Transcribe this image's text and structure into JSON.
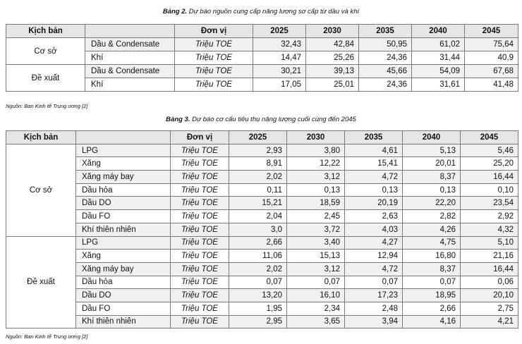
{
  "table2": {
    "caption_bold": "Bảng 2.",
    "caption_text": " Dự báo nguồn cung cấp năng lượng sơ cấp từ dầu và khí",
    "headers": [
      "Kịch bản",
      "",
      "Đơn vị",
      "2025",
      "2030",
      "2035",
      "2040",
      "2045"
    ],
    "groups": [
      {
        "scenario": "Cơ sở",
        "rows": [
          {
            "item": "Dầu & Condensate",
            "unit": "Triệu TOE",
            "values": [
              "32,43",
              "42,84",
              "50,95",
              "61,02",
              "75,64"
            ]
          },
          {
            "item": "Khí",
            "unit": "Triệu TOE",
            "values": [
              "14,47",
              "25,26",
              "24,36",
              "31,44",
              "40,9"
            ]
          }
        ]
      },
      {
        "scenario": "Đề xuất",
        "rows": [
          {
            "item": "Dầu & Condensate",
            "unit": "Triệu TOE",
            "values": [
              "30,21",
              "39,13",
              "45,66",
              "54,09",
              "67,68"
            ]
          },
          {
            "item": "Khí",
            "unit": "Triệu TOE",
            "values": [
              "17,05",
              "25,01",
              "24,36",
              "31,61",
              "41,48"
            ]
          }
        ]
      }
    ],
    "source": "Nguồn: Ban Kinh tế Trung ương [2]"
  },
  "table3": {
    "caption_bold": "Bảng 3.",
    "caption_text": " Dự báo cơ cấu tiêu thụ năng lượng cuối cùng đến 2045",
    "headers": [
      "Kịch bản",
      "",
      "Đơn vị",
      "2025",
      "2030",
      "2035",
      "2040",
      "2045"
    ],
    "groups": [
      {
        "scenario": "Cơ sở",
        "rows": [
          {
            "item": "LPG",
            "unit": "Triệu TOE",
            "values": [
              "2,93",
              "3,80",
              "4,61",
              "5,13",
              "5,46"
            ]
          },
          {
            "item": "Xăng",
            "unit": "Triệu TOE",
            "values": [
              "8,91",
              "12,22",
              "15,41",
              "20,01",
              "25,20"
            ]
          },
          {
            "item": "Xăng máy bay",
            "unit": "Triệu TOE",
            "values": [
              "2,02",
              "3,12",
              "4,72",
              "8,37",
              "16,44"
            ]
          },
          {
            "item": "Dầu hỏa",
            "unit": "Triệu TOE",
            "values": [
              "0,11",
              "0,13",
              "0,13",
              "0,13",
              "0,10"
            ]
          },
          {
            "item": "Dầu DO",
            "unit": "Triệu TOE",
            "values": [
              "15,21",
              "18,59",
              "20,19",
              "22,20",
              "23,54"
            ]
          },
          {
            "item": "Dầu FO",
            "unit": "Triệu TOE",
            "values": [
              "2,04",
              "2,45",
              "2,63",
              "2,82",
              "2,92"
            ]
          },
          {
            "item": "Khí thiên nhiên",
            "unit": "Triệu TOE",
            "values": [
              "3,0",
              "3,72",
              "4,03",
              "4,26",
              "4,32"
            ]
          }
        ]
      },
      {
        "scenario": "Đề xuất",
        "rows": [
          {
            "item": "LPG",
            "unit": "Triệu TOE",
            "values": [
              "2,66",
              "3,40",
              "4,27",
              "4,75",
              "5,10"
            ]
          },
          {
            "item": "Xăng",
            "unit": "Triệu TOE",
            "values": [
              "11,06",
              "15,13",
              "12,94",
              "16,80",
              "21,16"
            ]
          },
          {
            "item": "Xăng máy bay",
            "unit": "Triệu TOE",
            "values": [
              "2,02",
              "3,12",
              "4,72",
              "8,37",
              "16,44"
            ]
          },
          {
            "item": "Dầu hỏa",
            "unit": "Triệu TOE",
            "values": [
              "0,07",
              "0,07",
              "0,07",
              "0,07",
              "0,06"
            ]
          },
          {
            "item": "Dầu DO",
            "unit": "Triệu TOE",
            "values": [
              "13,20",
              "16,10",
              "17,23",
              "18,95",
              "20,10"
            ]
          },
          {
            "item": "Dầu FO",
            "unit": "Triệu TOE",
            "values": [
              "1,95",
              "2,34",
              "2,48",
              "2,66",
              "2,75"
            ]
          },
          {
            "item": "Khí thiên nhiên",
            "unit": "Triệu TOE",
            "values": [
              "2,95",
              "3,65",
              "3,94",
              "4,16",
              "4,21"
            ]
          }
        ]
      }
    ],
    "source": "Nguồn: Ban Kinh tế Trung ương [2]"
  }
}
